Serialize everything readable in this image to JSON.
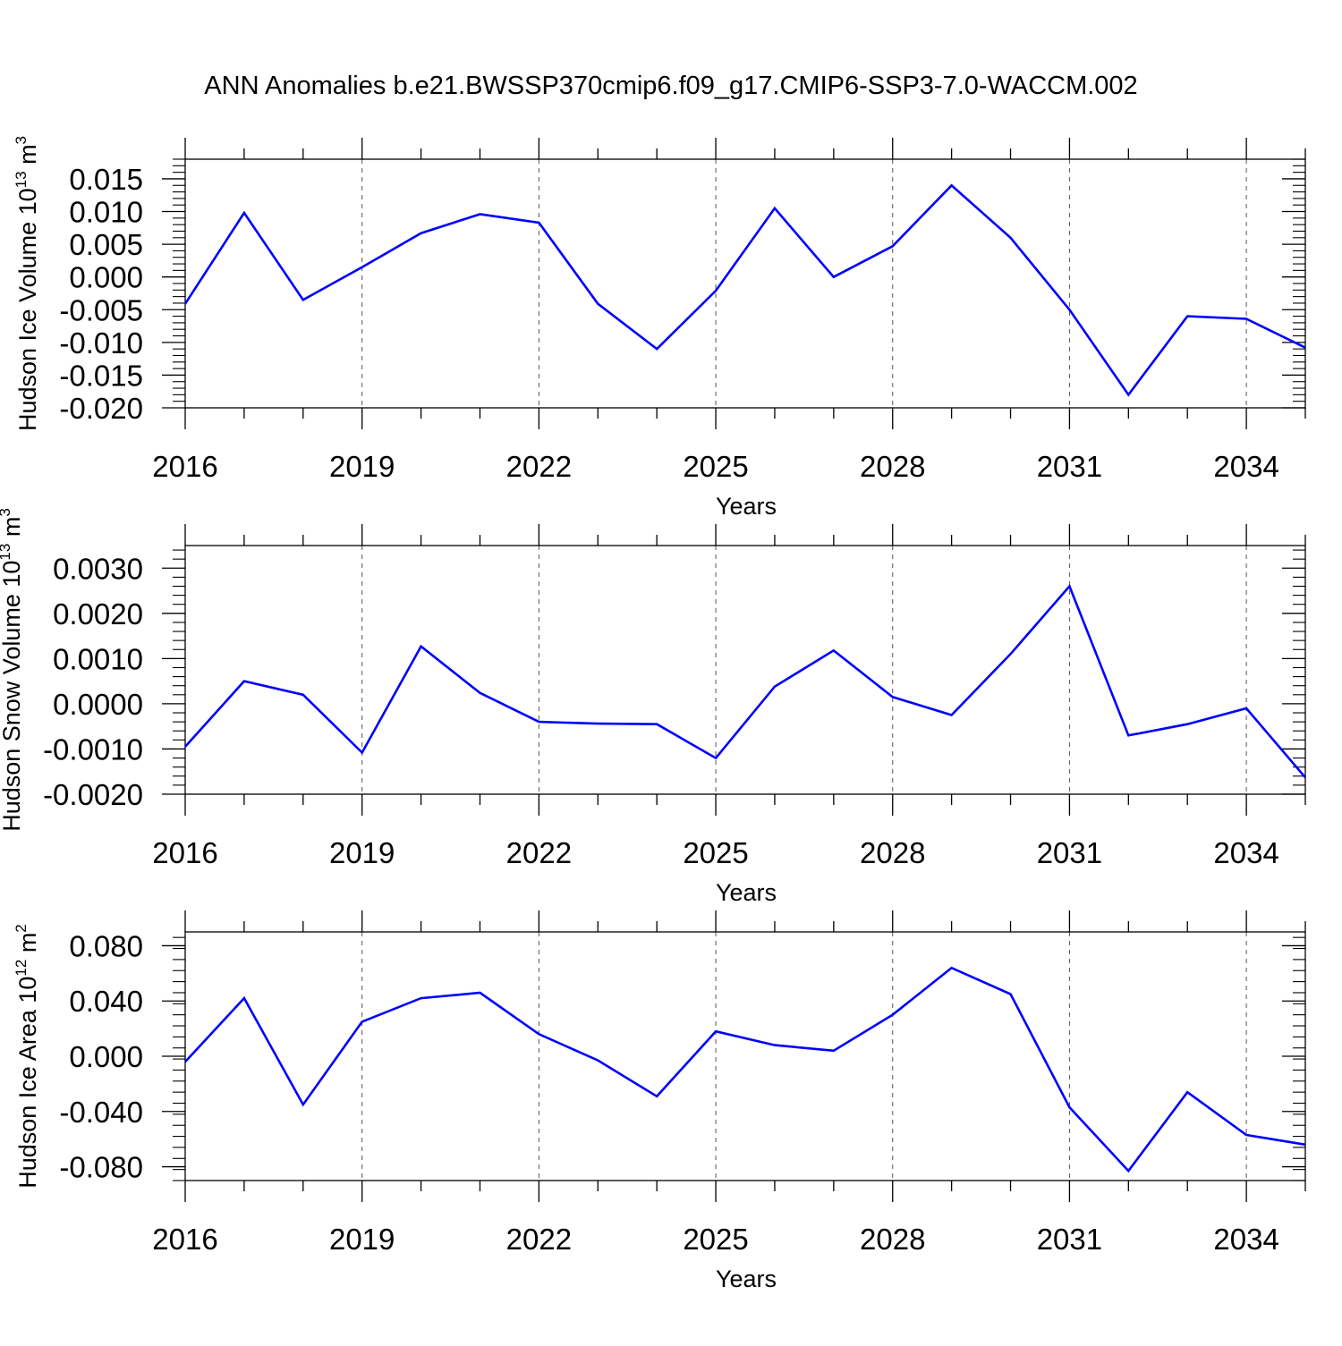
{
  "title": "ANN Anomalies b.e21.BWSSP370cmip6.f09_g17.CMIP6-SSP3-7.0-WACCM.002",
  "line_color": "#0000ff",
  "chart_data": [
    {
      "type": "line",
      "xlabel": "Years",
      "ylabel": "Hudson Ice Volume 10",
      "ylabel_exp": "13",
      "ylabel_unit": "m",
      "ylabel_unit_exp": "3",
      "xlim": [
        2016,
        2035
      ],
      "ylim": [
        -0.02,
        0.018
      ],
      "x_ticks": [
        2016,
        2019,
        2022,
        2025,
        2028,
        2031,
        2034
      ],
      "x_tick_labels": [
        "2016",
        "2019",
        "2022",
        "2025",
        "2028",
        "2031",
        "2034"
      ],
      "y_ticks": [
        -0.02,
        -0.015,
        -0.01,
        -0.005,
        0.0,
        0.005,
        0.01,
        0.015
      ],
      "y_tick_labels": [
        "-0.020",
        "-0.015",
        "-0.010",
        "-0.005",
        "0.000",
        "0.005",
        "0.010",
        "0.015"
      ],
      "x": [
        2016,
        2017,
        2018,
        2019,
        2020,
        2021,
        2022,
        2023,
        2024,
        2025,
        2026,
        2027,
        2028,
        2029,
        2030,
        2031,
        2032,
        2033,
        2034,
        2035
      ],
      "values": [
        -0.0041,
        0.0098,
        -0.0035,
        0.0015,
        0.0067,
        0.0096,
        0.0083,
        -0.0041,
        -0.011,
        -0.0021,
        0.0105,
        0.0,
        0.0047,
        0.014,
        0.006,
        -0.005,
        -0.018,
        -0.006,
        -0.0064,
        -0.0108
      ],
      "grid": "dashed vertical at major x ticks"
    },
    {
      "type": "line",
      "xlabel": "Years",
      "ylabel": "Hudson Snow Volume 10",
      "ylabel_exp": "13",
      "ylabel_unit": "m",
      "ylabel_unit_exp": "3",
      "xlim": [
        2016,
        2035
      ],
      "ylim": [
        -0.002,
        0.0035
      ],
      "x_ticks": [
        2016,
        2019,
        2022,
        2025,
        2028,
        2031,
        2034
      ],
      "x_tick_labels": [
        "2016",
        "2019",
        "2022",
        "2025",
        "2028",
        "2031",
        "2034"
      ],
      "y_ticks": [
        -0.002,
        -0.001,
        0.0,
        0.001,
        0.002,
        0.003
      ],
      "y_tick_labels": [
        "-0.0020",
        "-0.0010",
        "0.0000",
        "0.0010",
        "0.0020",
        "0.0030"
      ],
      "x": [
        2016,
        2017,
        2018,
        2019,
        2020,
        2021,
        2022,
        2023,
        2024,
        2025,
        2026,
        2027,
        2028,
        2029,
        2030,
        2031,
        2032,
        2033,
        2034,
        2035
      ],
      "values": [
        -0.00095,
        0.0005,
        0.0002,
        -0.00108,
        0.00127,
        0.00024,
        -0.0004,
        -0.00044,
        -0.00045,
        -0.0012,
        0.00038,
        0.00118,
        0.00015,
        -0.00025,
        0.0011,
        0.0026,
        -0.0007,
        -0.00045,
        -0.0001,
        -0.00163
      ],
      "grid": "dashed vertical at major x ticks"
    },
    {
      "type": "line",
      "xlabel": "Years",
      "ylabel": "Hudson Ice Area 10",
      "ylabel_exp": "12",
      "ylabel_unit": "m",
      "ylabel_unit_exp": "2",
      "xlim": [
        2016,
        2035
      ],
      "ylim": [
        -0.09,
        0.09
      ],
      "x_ticks": [
        2016,
        2019,
        2022,
        2025,
        2028,
        2031,
        2034
      ],
      "x_tick_labels": [
        "2016",
        "2019",
        "2022",
        "2025",
        "2028",
        "2031",
        "2034"
      ],
      "y_ticks": [
        -0.08,
        -0.04,
        0.0,
        0.04,
        0.08
      ],
      "y_tick_labels": [
        "-0.080",
        "-0.040",
        "0.000",
        "0.040",
        "0.080"
      ],
      "x": [
        2016,
        2017,
        2018,
        2019,
        2020,
        2021,
        2022,
        2023,
        2024,
        2025,
        2026,
        2027,
        2028,
        2029,
        2030,
        2031,
        2032,
        2033,
        2034,
        2035
      ],
      "values": [
        -0.004,
        0.042,
        -0.035,
        0.025,
        0.042,
        0.046,
        0.016,
        -0.003,
        -0.029,
        0.018,
        0.008,
        0.004,
        0.03,
        0.064,
        0.045,
        -0.037,
        -0.083,
        -0.026,
        -0.057,
        -0.064
      ],
      "grid": "dashed vertical at major x ticks"
    }
  ]
}
